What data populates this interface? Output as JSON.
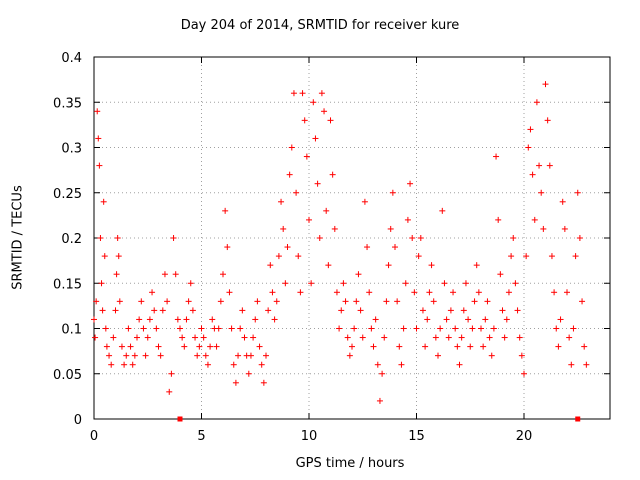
{
  "chart_data": {
    "type": "scatter",
    "title": "Day 204 of 2014, SRMTID for receiver kure",
    "xlabel": "GPS time / hours",
    "ylabel": "SRMTID / TECUs",
    "xlim": [
      0,
      24
    ],
    "ylim": [
      0,
      0.4
    ],
    "grid": true,
    "grid_style": "dotted",
    "marker": "+",
    "marker_color": "#ff0000",
    "x_ticks": [
      0,
      5,
      10,
      15,
      20
    ],
    "x_tick_labels": [
      "0",
      "5",
      "10",
      "15",
      "20"
    ],
    "y_ticks": [
      0,
      0.05,
      0.1,
      0.15,
      0.2,
      0.25,
      0.3,
      0.35,
      0.4
    ],
    "y_tick_labels": [
      "0",
      "0.05",
      "0.1",
      "0.15",
      "0.2",
      "0.25",
      "0.3",
      "0.35",
      "0.4"
    ],
    "series": [
      {
        "name": "SRMTID",
        "points": [
          [
            0.0,
            0.11
          ],
          [
            0.05,
            0.09
          ],
          [
            0.1,
            0.13
          ],
          [
            0.15,
            0.34
          ],
          [
            0.2,
            0.31
          ],
          [
            0.25,
            0.28
          ],
          [
            0.3,
            0.2
          ],
          [
            0.35,
            0.15
          ],
          [
            0.4,
            0.12
          ],
          [
            0.45,
            0.24
          ],
          [
            0.5,
            0.18
          ],
          [
            0.55,
            0.1
          ],
          [
            0.6,
            0.08
          ],
          [
            0.7,
            0.07
          ],
          [
            0.8,
            0.06
          ],
          [
            0.9,
            0.09
          ],
          [
            1.0,
            0.12
          ],
          [
            1.05,
            0.16
          ],
          [
            1.1,
            0.2
          ],
          [
            1.15,
            0.18
          ],
          [
            1.2,
            0.13
          ],
          [
            1.3,
            0.08
          ],
          [
            1.4,
            0.06
          ],
          [
            1.5,
            0.07
          ],
          [
            1.6,
            0.1
          ],
          [
            1.7,
            0.08
          ],
          [
            1.8,
            0.06
          ],
          [
            1.9,
            0.07
          ],
          [
            2.0,
            0.09
          ],
          [
            2.1,
            0.11
          ],
          [
            2.2,
            0.13
          ],
          [
            2.3,
            0.1
          ],
          [
            2.4,
            0.07
          ],
          [
            2.5,
            0.09
          ],
          [
            2.6,
            0.11
          ],
          [
            2.7,
            0.14
          ],
          [
            2.8,
            0.12
          ],
          [
            2.9,
            0.1
          ],
          [
            3.0,
            0.08
          ],
          [
            3.1,
            0.07
          ],
          [
            3.2,
            0.12
          ],
          [
            3.3,
            0.16
          ],
          [
            3.4,
            0.13
          ],
          [
            3.5,
            0.03
          ],
          [
            3.6,
            0.05
          ],
          [
            3.7,
            0.2
          ],
          [
            3.8,
            0.16
          ],
          [
            3.9,
            0.11
          ],
          [
            4.0,
            0.1
          ],
          [
            4.1,
            0.09
          ],
          [
            4.2,
            0.08
          ],
          [
            4.3,
            0.11
          ],
          [
            4.4,
            0.13
          ],
          [
            4.5,
            0.15
          ],
          [
            4.6,
            0.12
          ],
          [
            4.7,
            0.09
          ],
          [
            4.8,
            0.07
          ],
          [
            4.9,
            0.08
          ],
          [
            5.0,
            0.1
          ],
          [
            5.1,
            0.09
          ],
          [
            5.2,
            0.07
          ],
          [
            5.3,
            0.06
          ],
          [
            5.4,
            0.08
          ],
          [
            5.5,
            0.11
          ],
          [
            5.6,
            0.1
          ],
          [
            5.7,
            0.08
          ],
          [
            5.8,
            0.1
          ],
          [
            5.9,
            0.13
          ],
          [
            6.0,
            0.16
          ],
          [
            6.1,
            0.23
          ],
          [
            6.2,
            0.19
          ],
          [
            6.3,
            0.14
          ],
          [
            6.4,
            0.1
          ],
          [
            6.5,
            0.06
          ],
          [
            6.6,
            0.04
          ],
          [
            6.7,
            0.07
          ],
          [
            6.8,
            0.1
          ],
          [
            6.9,
            0.12
          ],
          [
            7.0,
            0.09
          ],
          [
            7.1,
            0.07
          ],
          [
            7.2,
            0.05
          ],
          [
            7.3,
            0.07
          ],
          [
            7.4,
            0.09
          ],
          [
            7.5,
            0.11
          ],
          [
            7.6,
            0.13
          ],
          [
            7.7,
            0.08
          ],
          [
            7.8,
            0.06
          ],
          [
            7.9,
            0.04
          ],
          [
            8.0,
            0.07
          ],
          [
            8.1,
            0.12
          ],
          [
            8.2,
            0.17
          ],
          [
            8.3,
            0.14
          ],
          [
            8.4,
            0.11
          ],
          [
            8.5,
            0.13
          ],
          [
            8.6,
            0.18
          ],
          [
            8.7,
            0.24
          ],
          [
            8.8,
            0.21
          ],
          [
            8.9,
            0.15
          ],
          [
            9.0,
            0.19
          ],
          [
            9.1,
            0.27
          ],
          [
            9.2,
            0.3
          ],
          [
            9.3,
            0.36
          ],
          [
            9.4,
            0.25
          ],
          [
            9.5,
            0.18
          ],
          [
            9.6,
            0.14
          ],
          [
            9.7,
            0.36
          ],
          [
            9.8,
            0.33
          ],
          [
            9.9,
            0.29
          ],
          [
            10.0,
            0.22
          ],
          [
            10.1,
            0.15
          ],
          [
            10.2,
            0.35
          ],
          [
            10.3,
            0.31
          ],
          [
            10.4,
            0.26
          ],
          [
            10.5,
            0.2
          ],
          [
            10.6,
            0.36
          ],
          [
            10.7,
            0.34
          ],
          [
            10.8,
            0.23
          ],
          [
            10.9,
            0.17
          ],
          [
            11.0,
            0.33
          ],
          [
            11.1,
            0.27
          ],
          [
            11.2,
            0.21
          ],
          [
            11.3,
            0.14
          ],
          [
            11.4,
            0.1
          ],
          [
            11.5,
            0.12
          ],
          [
            11.6,
            0.15
          ],
          [
            11.7,
            0.13
          ],
          [
            11.8,
            0.09
          ],
          [
            11.9,
            0.07
          ],
          [
            12.0,
            0.08
          ],
          [
            12.1,
            0.1
          ],
          [
            12.2,
            0.13
          ],
          [
            12.3,
            0.16
          ],
          [
            12.4,
            0.12
          ],
          [
            12.5,
            0.09
          ],
          [
            12.6,
            0.24
          ],
          [
            12.7,
            0.19
          ],
          [
            12.8,
            0.14
          ],
          [
            12.9,
            0.1
          ],
          [
            13.0,
            0.08
          ],
          [
            13.1,
            0.11
          ],
          [
            13.2,
            0.06
          ],
          [
            13.3,
            0.02
          ],
          [
            13.4,
            0.05
          ],
          [
            13.5,
            0.09
          ],
          [
            13.6,
            0.13
          ],
          [
            13.7,
            0.17
          ],
          [
            13.8,
            0.21
          ],
          [
            13.9,
            0.25
          ],
          [
            14.0,
            0.19
          ],
          [
            14.1,
            0.13
          ],
          [
            14.2,
            0.08
          ],
          [
            14.3,
            0.06
          ],
          [
            14.4,
            0.1
          ],
          [
            14.5,
            0.15
          ],
          [
            14.6,
            0.22
          ],
          [
            14.7,
            0.26
          ],
          [
            14.8,
            0.2
          ],
          [
            14.9,
            0.14
          ],
          [
            15.0,
            0.1
          ],
          [
            15.1,
            0.18
          ],
          [
            15.2,
            0.2
          ],
          [
            15.3,
            0.12
          ],
          [
            15.4,
            0.08
          ],
          [
            15.5,
            0.11
          ],
          [
            15.6,
            0.14
          ],
          [
            15.7,
            0.17
          ],
          [
            15.8,
            0.13
          ],
          [
            15.9,
            0.09
          ],
          [
            16.0,
            0.07
          ],
          [
            16.1,
            0.1
          ],
          [
            16.2,
            0.23
          ],
          [
            16.3,
            0.15
          ],
          [
            16.4,
            0.11
          ],
          [
            16.5,
            0.09
          ],
          [
            16.6,
            0.12
          ],
          [
            16.7,
            0.14
          ],
          [
            16.8,
            0.1
          ],
          [
            16.9,
            0.08
          ],
          [
            17.0,
            0.06
          ],
          [
            17.1,
            0.09
          ],
          [
            17.2,
            0.12
          ],
          [
            17.3,
            0.15
          ],
          [
            17.4,
            0.11
          ],
          [
            17.5,
            0.08
          ],
          [
            17.6,
            0.1
          ],
          [
            17.7,
            0.13
          ],
          [
            17.8,
            0.17
          ],
          [
            17.9,
            0.14
          ],
          [
            18.0,
            0.1
          ],
          [
            18.1,
            0.08
          ],
          [
            18.2,
            0.11
          ],
          [
            18.3,
            0.13
          ],
          [
            18.4,
            0.09
          ],
          [
            18.5,
            0.07
          ],
          [
            18.6,
            0.1
          ],
          [
            18.7,
            0.29
          ],
          [
            18.8,
            0.22
          ],
          [
            18.9,
            0.16
          ],
          [
            19.0,
            0.12
          ],
          [
            19.1,
            0.09
          ],
          [
            19.2,
            0.11
          ],
          [
            19.3,
            0.14
          ],
          [
            19.4,
            0.18
          ],
          [
            19.5,
            0.2
          ],
          [
            19.6,
            0.15
          ],
          [
            19.7,
            0.12
          ],
          [
            19.8,
            0.09
          ],
          [
            19.9,
            0.07
          ],
          [
            20.0,
            0.05
          ],
          [
            20.1,
            0.18
          ],
          [
            20.2,
            0.3
          ],
          [
            20.3,
            0.32
          ],
          [
            20.4,
            0.27
          ],
          [
            20.5,
            0.22
          ],
          [
            20.6,
            0.35
          ],
          [
            20.7,
            0.28
          ],
          [
            20.8,
            0.25
          ],
          [
            20.9,
            0.21
          ],
          [
            21.0,
            0.37
          ],
          [
            21.1,
            0.33
          ],
          [
            21.2,
            0.28
          ],
          [
            21.3,
            0.18
          ],
          [
            21.4,
            0.14
          ],
          [
            21.5,
            0.1
          ],
          [
            21.6,
            0.08
          ],
          [
            21.7,
            0.11
          ],
          [
            21.8,
            0.24
          ],
          [
            21.9,
            0.21
          ],
          [
            22.0,
            0.14
          ],
          [
            22.1,
            0.09
          ],
          [
            22.2,
            0.06
          ],
          [
            22.3,
            0.1
          ],
          [
            22.4,
            0.18
          ],
          [
            22.5,
            0.25
          ],
          [
            22.6,
            0.2
          ],
          [
            22.7,
            0.13
          ],
          [
            22.8,
            0.08
          ],
          [
            22.9,
            0.06
          ]
        ]
      }
    ],
    "special_markers": [
      {
        "x": 4.0,
        "y": 0,
        "shape": "square",
        "color": "#ff0000"
      },
      {
        "x": 22.5,
        "y": 0,
        "shape": "square",
        "color": "#ff0000"
      }
    ]
  }
}
